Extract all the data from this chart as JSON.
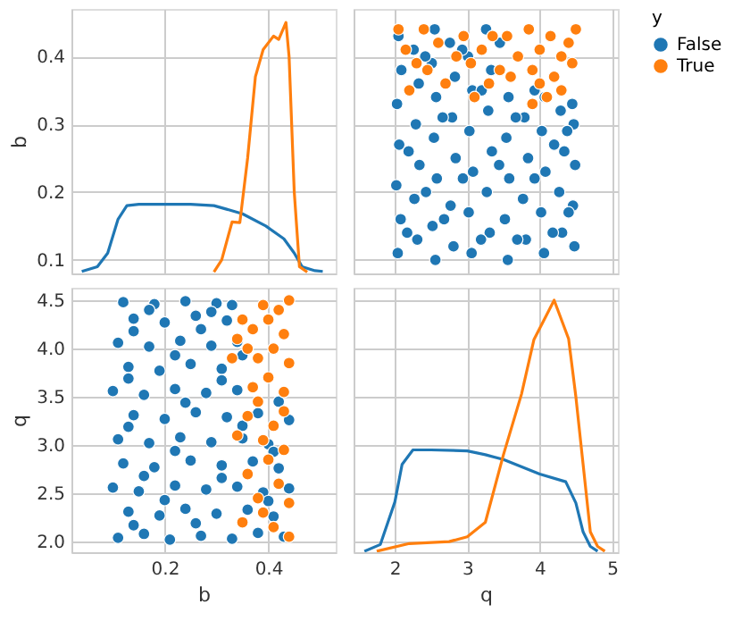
{
  "chart_data": [
    {
      "type": "line",
      "ylabel": "b",
      "legend": "right",
      "legend_title": "y",
      "xlim": [
        0.02,
        0.53
      ],
      "ylim": [
        0.08,
        0.47
      ],
      "xticks": [
        0.2,
        0.4
      ],
      "yticks": [
        0.1,
        0.2,
        0.3,
        0.4
      ],
      "tick_labels": "y",
      "grid": true,
      "series": [
        {
          "name": "False",
          "color": "#1f77b4",
          "x": [
            0.04,
            0.07,
            0.09,
            0.11,
            0.127,
            0.15,
            0.2,
            0.25,
            0.295,
            0.35,
            0.395,
            0.43,
            0.45,
            0.465,
            0.49,
            0.505
          ],
          "values": [
            0.083,
            0.09,
            0.11,
            0.16,
            0.18,
            0.182,
            0.182,
            0.182,
            0.18,
            0.168,
            0.15,
            0.131,
            0.11,
            0.09,
            0.084,
            0.083
          ]
        },
        {
          "name": "True",
          "color": "#ff7f0e",
          "x": [
            0.295,
            0.31,
            0.33,
            0.345,
            0.36,
            0.375,
            0.39,
            0.41,
            0.42,
            0.434,
            0.44,
            0.45,
            0.46,
            0.475
          ],
          "values": [
            0.082,
            0.1,
            0.156,
            0.155,
            0.25,
            0.37,
            0.41,
            0.43,
            0.425,
            0.45,
            0.4,
            0.2,
            0.09,
            0.082
          ]
        }
      ]
    },
    {
      "type": "scatter",
      "xlim": [
        1.43,
        5.08
      ],
      "ylim": [
        0.08,
        0.47
      ],
      "xticks": [
        2,
        3,
        4,
        5
      ],
      "yticks": [
        0.1,
        0.2,
        0.3,
        0.4
      ],
      "tick_labels": false,
      "grid": true,
      "marker": "circle",
      "series": [
        {
          "name": "False",
          "color": "#1f77b4",
          "x": [
            2.04,
            2.08,
            2.02,
            2.06,
            2.03,
            2.09,
            2.05,
            2.31,
            2.27,
            2.34,
            2.29,
            2.33,
            2.26,
            2.56,
            2.52,
            2.58,
            2.54,
            2.57,
            2.51,
            2.55,
            2.81,
            2.77,
            2.84,
            2.79,
            2.83,
            2.76,
            3.06,
            3.02,
            3.08,
            3.03,
            3.07,
            3.01,
            3.31,
            3.27,
            3.34,
            3.29,
            3.33,
            3.26,
            3.56,
            3.52,
            3.58,
            3.54,
            3.57,
            3.81,
            3.77,
            3.84,
            3.79,
            4.06,
            4.02,
            4.08,
            4.03,
            4.07,
            4.31,
            4.27,
            4.34,
            4.29,
            4.48,
            4.46,
            4.49,
            4.47,
            4.45,
            2.17,
            2.19,
            2.42,
            2.43,
            2.66,
            2.68,
            2.93,
            2.94,
            3.19,
            3.2,
            3.44,
            3.45,
            3.69,
            3.67,
            3.93,
            3.93,
            4.18,
            4.2,
            4.4,
            4.38
          ],
          "values": [
            0.11,
            0.16,
            0.21,
            0.27,
            0.33,
            0.38,
            0.43,
            0.13,
            0.19,
            0.24,
            0.3,
            0.36,
            0.41,
            0.1,
            0.15,
            0.22,
            0.28,
            0.34,
            0.39,
            0.44,
            0.12,
            0.18,
            0.25,
            0.31,
            0.37,
            0.42,
            0.11,
            0.17,
            0.23,
            0.29,
            0.35,
            0.4,
            0.14,
            0.2,
            0.26,
            0.32,
            0.38,
            0.44,
            0.1,
            0.16,
            0.22,
            0.28,
            0.34,
            0.13,
            0.19,
            0.25,
            0.31,
            0.11,
            0.17,
            0.23,
            0.29,
            0.34,
            0.14,
            0.2,
            0.26,
            0.32,
            0.12,
            0.18,
            0.24,
            0.3,
            0.33,
            0.14,
            0.26,
            0.4,
            0.2,
            0.31,
            0.16,
            0.41,
            0.22,
            0.13,
            0.35,
            0.24,
            0.42,
            0.13,
            0.31,
            0.22,
            0.35,
            0.14,
            0.27,
            0.17,
            0.29
          ]
        },
        {
          "name": "True",
          "color": "#ff7f0e",
          "x": [
            3.6,
            3.7,
            3.55,
            3.9,
            4.0,
            3.85,
            4.2,
            4.3,
            4.15,
            4.45,
            4.4,
            4.5,
            4.0,
            4.3,
            4.1,
            3.9,
            3.45,
            3.35,
            3.3,
            3.2,
            3.05,
            3.1,
            2.95,
            2.85,
            2.7,
            2.6,
            2.45,
            2.4,
            2.2,
            2.15,
            2.05,
            2.3
          ],
          "values": [
            0.37,
            0.4,
            0.43,
            0.38,
            0.41,
            0.44,
            0.37,
            0.4,
            0.43,
            0.39,
            0.42,
            0.44,
            0.36,
            0.35,
            0.34,
            0.33,
            0.38,
            0.43,
            0.36,
            0.41,
            0.39,
            0.34,
            0.43,
            0.4,
            0.36,
            0.42,
            0.38,
            0.44,
            0.35,
            0.41,
            0.44,
            0.39
          ]
        }
      ]
    },
    {
      "type": "scatter",
      "xlabel": "b",
      "ylabel": "q",
      "xlim": [
        0.02,
        0.53
      ],
      "ylim": [
        1.89,
        4.63
      ],
      "xticks": [
        0.2,
        0.4
      ],
      "yticks": [
        {
          "value": 2,
          "label": "2.0"
        },
        2.5,
        {
          "value": 3,
          "label": "3.0"
        },
        3.5,
        {
          "value": 4,
          "label": "4.0"
        },
        4.5
      ],
      "grid": true,
      "marker": "circle",
      "series": [
        {
          "name": "False",
          "color": "#1f77b4",
          "x": [
            0.11,
            0.16,
            0.21,
            0.27,
            0.33,
            0.38,
            0.43,
            0.13,
            0.19,
            0.24,
            0.3,
            0.36,
            0.41,
            0.1,
            0.15,
            0.22,
            0.28,
            0.34,
            0.39,
            0.44,
            0.12,
            0.18,
            0.25,
            0.31,
            0.37,
            0.42,
            0.11,
            0.17,
            0.23,
            0.29,
            0.35,
            0.4,
            0.14,
            0.2,
            0.26,
            0.32,
            0.38,
            0.44,
            0.1,
            0.16,
            0.22,
            0.28,
            0.34,
            0.13,
            0.19,
            0.25,
            0.31,
            0.11,
            0.17,
            0.23,
            0.29,
            0.34,
            0.14,
            0.2,
            0.26,
            0.32,
            0.12,
            0.18,
            0.24,
            0.3,
            0.33,
            0.14,
            0.26,
            0.4,
            0.2,
            0.31,
            0.16,
            0.41,
            0.22,
            0.13,
            0.35,
            0.24,
            0.42,
            0.13,
            0.31,
            0.22,
            0.35,
            0.14,
            0.27,
            0.17,
            0.29
          ],
          "values": [
            2.04,
            2.08,
            2.02,
            2.06,
            2.03,
            2.09,
            2.05,
            2.31,
            2.27,
            2.34,
            2.29,
            2.33,
            2.26,
            2.56,
            2.52,
            2.58,
            2.54,
            2.57,
            2.51,
            2.55,
            2.81,
            2.77,
            2.84,
            2.79,
            2.83,
            2.76,
            3.06,
            3.02,
            3.08,
            3.03,
            3.07,
            3.01,
            3.31,
            3.27,
            3.34,
            3.29,
            3.33,
            3.26,
            3.56,
            3.52,
            3.58,
            3.54,
            3.57,
            3.81,
            3.77,
            3.84,
            3.79,
            4.06,
            4.02,
            4.08,
            4.03,
            4.07,
            4.31,
            4.27,
            4.34,
            4.29,
            4.48,
            4.46,
            4.49,
            4.47,
            4.45,
            2.17,
            2.19,
            2.42,
            2.43,
            2.66,
            2.68,
            2.93,
            2.94,
            3.19,
            3.2,
            3.44,
            3.45,
            3.69,
            3.67,
            3.93,
            3.93,
            4.18,
            4.2,
            4.4,
            4.38
          ]
        },
        {
          "name": "True",
          "color": "#ff7f0e",
          "x": [
            0.37,
            0.4,
            0.43,
            0.38,
            0.41,
            0.44,
            0.37,
            0.4,
            0.43,
            0.39,
            0.42,
            0.44,
            0.36,
            0.35,
            0.34,
            0.33,
            0.38,
            0.43,
            0.36,
            0.41,
            0.39,
            0.34,
            0.43,
            0.4,
            0.36,
            0.42,
            0.38,
            0.44,
            0.35,
            0.41,
            0.44,
            0.39
          ],
          "values": [
            3.6,
            3.7,
            3.55,
            3.9,
            4.0,
            3.85,
            4.2,
            4.3,
            4.15,
            4.45,
            4.4,
            4.5,
            4.0,
            4.3,
            4.1,
            3.9,
            3.45,
            3.35,
            3.3,
            3.2,
            3.05,
            3.1,
            2.95,
            2.85,
            2.7,
            2.6,
            2.45,
            2.4,
            2.2,
            2.15,
            2.05,
            2.3
          ]
        }
      ]
    },
    {
      "type": "line",
      "xlabel": "q",
      "xlim": [
        1.43,
        5.08
      ],
      "ylim": [
        1.89,
        4.63
      ],
      "xticks": [
        2,
        3,
        4,
        5
      ],
      "yticks": [
        2,
        2.5,
        3,
        3.5,
        4,
        4.5
      ],
      "tick_labels": "x",
      "grid": true,
      "series": [
        {
          "name": "False",
          "color": "#1f77b4",
          "x": [
            1.58,
            1.8,
            2.0,
            2.1,
            2.25,
            2.5,
            3.0,
            3.25,
            3.5,
            4.0,
            4.36,
            4.5,
            4.6,
            4.7,
            4.8
          ],
          "values": [
            1.9,
            1.97,
            2.41,
            2.8,
            2.95,
            2.95,
            2.94,
            2.9,
            2.85,
            2.7,
            2.62,
            2.4,
            2.1,
            1.95,
            1.9
          ]
        },
        {
          "name": "True",
          "color": "#ff7f0e",
          "x": [
            1.75,
            2.2,
            2.75,
            3.0,
            3.25,
            3.5,
            3.75,
            3.92,
            4.2,
            4.4,
            4.5,
            4.6,
            4.7,
            4.8,
            4.9
          ],
          "values": [
            1.9,
            1.98,
            2.0,
            2.05,
            2.2,
            2.9,
            3.53,
            4.09,
            4.5,
            4.1,
            3.5,
            2.8,
            2.1,
            1.95,
            1.9
          ]
        }
      ]
    }
  ]
}
